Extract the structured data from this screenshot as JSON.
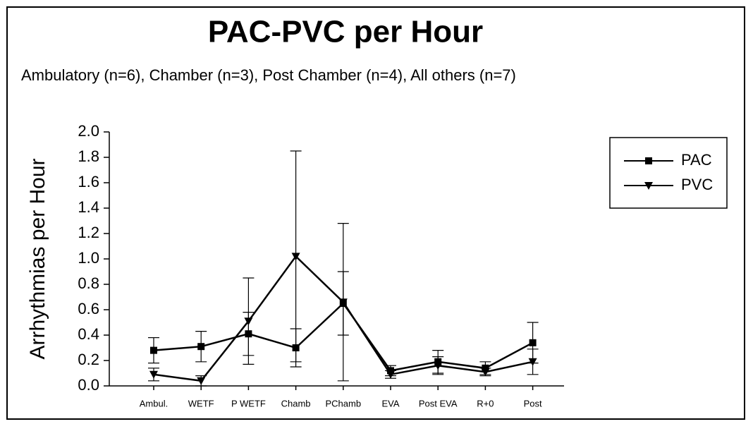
{
  "chart_data": {
    "type": "line",
    "title": "PAC-PVC per Hour",
    "subtitle": "Ambulatory (n=6), Chamber (n=3), Post Chamber (n=4), All others (n=7)",
    "y_label": "Arrhythmias per Hour",
    "categories": [
      "Ambul.",
      "WETF",
      "P WETF",
      "Chamb",
      "PChamb",
      "EVA",
      "Post EVA",
      "R+0",
      "Post"
    ],
    "series": [
      {
        "name": "PAC",
        "color": "#000000",
        "marker": "square",
        "values": [
          0.28,
          0.31,
          0.41,
          0.3,
          0.65,
          0.12,
          0.19,
          0.14,
          0.34
        ],
        "errors": [
          0.1,
          0.12,
          0.17,
          0.15,
          0.25,
          0.04,
          0.09,
          0.05,
          0.16
        ]
      },
      {
        "name": "PVC",
        "color": "#000000",
        "marker": "triangle-down",
        "values": [
          0.09,
          0.04,
          0.51,
          1.02,
          0.66,
          0.09,
          0.16,
          0.11,
          0.19
        ],
        "errors": [
          0.05,
          0.04,
          0.34,
          0.83,
          0.62,
          0.03,
          0.07,
          0.03,
          0.1
        ]
      }
    ],
    "ylim": [
      0,
      2
    ],
    "yticks": [
      {
        "value": 0,
        "label": "0.0"
      },
      0.2,
      0.4,
      0.6,
      0.8,
      {
        "value": 1,
        "label": "1.0"
      },
      1.2,
      1.4,
      1.6,
      1.8,
      {
        "value": 2,
        "label": "2.0"
      }
    ],
    "legend": "right"
  }
}
